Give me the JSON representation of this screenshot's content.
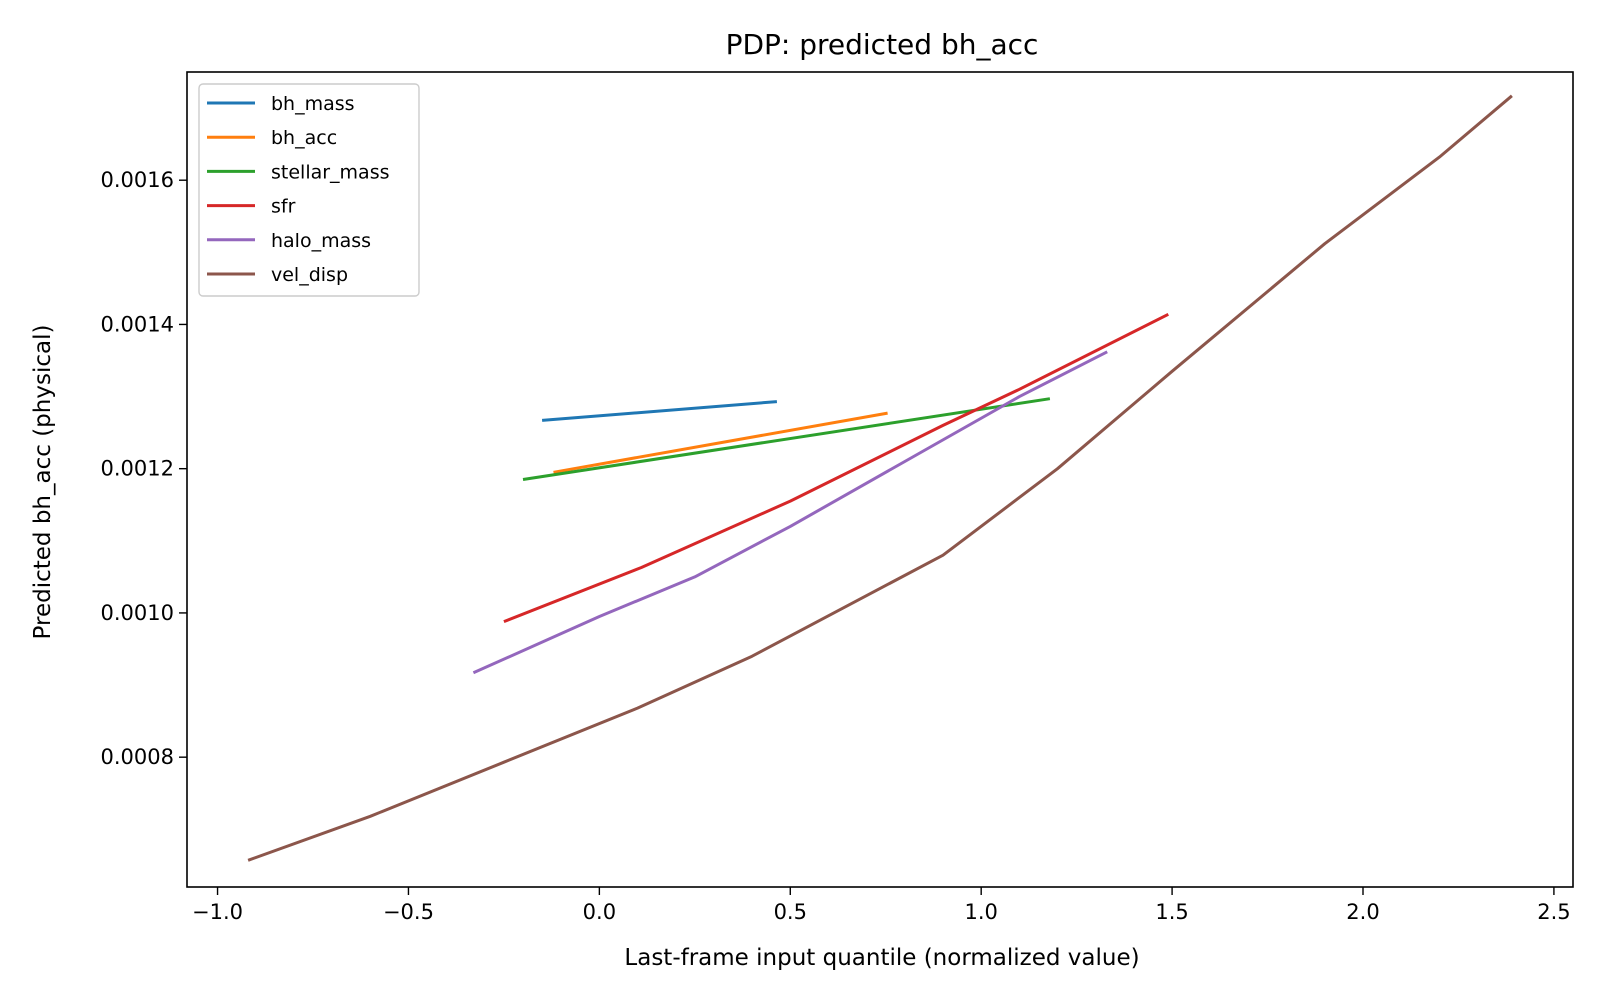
{
  "chart_data": {
    "type": "line",
    "title": "PDP: predicted bh_acc",
    "xlabel": "Last-frame input quantile (normalized value)",
    "ylabel": "Predicted bh_acc (physical)",
    "xlim": [
      -1.08,
      2.55
    ],
    "ylim": [
      0.00062,
      0.00175
    ],
    "x_ticks": [
      -1.0,
      -0.5,
      0.0,
      0.5,
      1.0,
      1.5,
      2.0,
      2.5
    ],
    "x_tick_labels": [
      "−1.0",
      "−0.5",
      "0.0",
      "0.5",
      "1.0",
      "1.5",
      "2.0",
      "2.5"
    ],
    "y_ticks": [
      0.0008,
      0.001,
      0.0012,
      0.0014,
      0.0016
    ],
    "y_tick_labels": [
      "0.0008",
      "0.0010",
      "0.0012",
      "0.0014",
      "0.0016"
    ],
    "grid": false,
    "legend_position": "top-left",
    "series": [
      {
        "name": "bh_mass",
        "color": "#1f77b4",
        "x": [
          -0.15,
          0.465
        ],
        "y": [
          0.001267,
          0.001293
        ]
      },
      {
        "name": "bh_acc",
        "color": "#ff7f0e",
        "x": [
          -0.12,
          0.755
        ],
        "y": [
          0.001195,
          0.001277
        ]
      },
      {
        "name": "stellar_mass",
        "color": "#2ca02c",
        "x": [
          -0.2,
          1.18
        ],
        "y": [
          0.001185,
          0.001297
        ]
      },
      {
        "name": "sfr",
        "color": "#d62728",
        "x": [
          -0.25,
          0.11,
          0.5,
          0.9,
          1.1,
          1.49
        ],
        "y": [
          0.000988,
          0.001063,
          0.001155,
          0.00126,
          0.00131,
          0.001414
        ]
      },
      {
        "name": "halo_mass",
        "color": "#9467bd",
        "x": [
          -0.33,
          0.0,
          0.25,
          0.5,
          0.8,
          1.1,
          1.33
        ],
        "y": [
          0.000917,
          0.000995,
          0.00105,
          0.00112,
          0.00121,
          0.0013,
          0.001362
        ]
      },
      {
        "name": "vel_disp",
        "color": "#8c564b",
        "x": [
          -0.92,
          -0.6,
          -0.25,
          0.1,
          0.4,
          0.65,
          0.9,
          1.2,
          1.5,
          1.9,
          2.2,
          2.39
        ],
        "y": [
          0.000657,
          0.000718,
          0.000793,
          0.000868,
          0.00094,
          0.00101,
          0.00108,
          0.0012,
          0.001335,
          0.001512,
          0.001632,
          0.001717
        ]
      }
    ]
  }
}
